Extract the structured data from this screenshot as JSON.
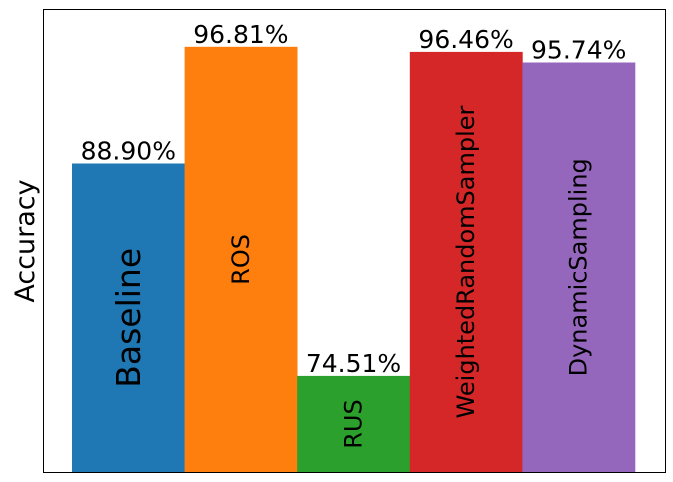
{
  "chart_data": {
    "type": "bar",
    "categories": [
      "Baseline",
      "ROS",
      "RUS",
      "WeightedRandomSampler",
      "DynamicSampling"
    ],
    "values": [
      88.9,
      96.81,
      74.51,
      96.46,
      95.74
    ],
    "value_labels": [
      "88.90%",
      "96.81%",
      "74.51%",
      "96.46%",
      "95.74%"
    ],
    "colors": [
      "#1f77b4",
      "#ff7f0e",
      "#2ca02c",
      "#d62728",
      "#9467bd"
    ],
    "ylabel": "Accuracy",
    "xlabel": "",
    "title": "",
    "ylim": [
      68.0,
      99.3
    ],
    "grid": false,
    "legend": "none",
    "label_placement": "category names drawn vertically inside bars"
  }
}
